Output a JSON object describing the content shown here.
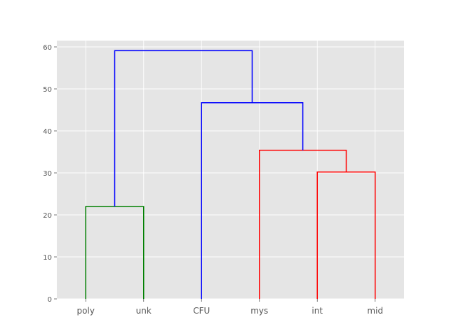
{
  "chart_data": {
    "type": "dendrogram",
    "title": "",
    "xlabel": "",
    "ylabel": "",
    "leaves": [
      "poly",
      "unk",
      "CFU",
      "mys",
      "int",
      "mid"
    ],
    "ylim": [
      0,
      61.5
    ],
    "yticks": [
      0,
      10,
      20,
      30,
      40,
      50,
      60
    ],
    "grid": true,
    "background_color": "#e5e5e5",
    "grid_color": "#ffffff",
    "links": [
      {
        "name": "link-poly-unk",
        "color": "#008000",
        "x": [
          5,
          5,
          15,
          15
        ],
        "y": [
          0,
          22.0,
          22.0,
          0
        ]
      },
      {
        "name": "link-int-mid",
        "color": "#ff0000",
        "x": [
          45,
          45,
          55,
          55
        ],
        "y": [
          0,
          30.2,
          30.2,
          0
        ]
      },
      {
        "name": "link-mys-intmid",
        "color": "#ff0000",
        "x": [
          35,
          35,
          50,
          50
        ],
        "y": [
          0,
          35.4,
          35.4,
          30.2
        ]
      },
      {
        "name": "link-CFU-cluster",
        "color": "#0000ff",
        "x": [
          25,
          25,
          42.5,
          42.5
        ],
        "y": [
          0,
          46.7,
          46.7,
          35.4
        ]
      },
      {
        "name": "link-root",
        "color": "#0000ff",
        "x": [
          10,
          10,
          33.75,
          33.75
        ],
        "y": [
          22.0,
          59.1,
          59.1,
          46.7
        ]
      }
    ]
  }
}
